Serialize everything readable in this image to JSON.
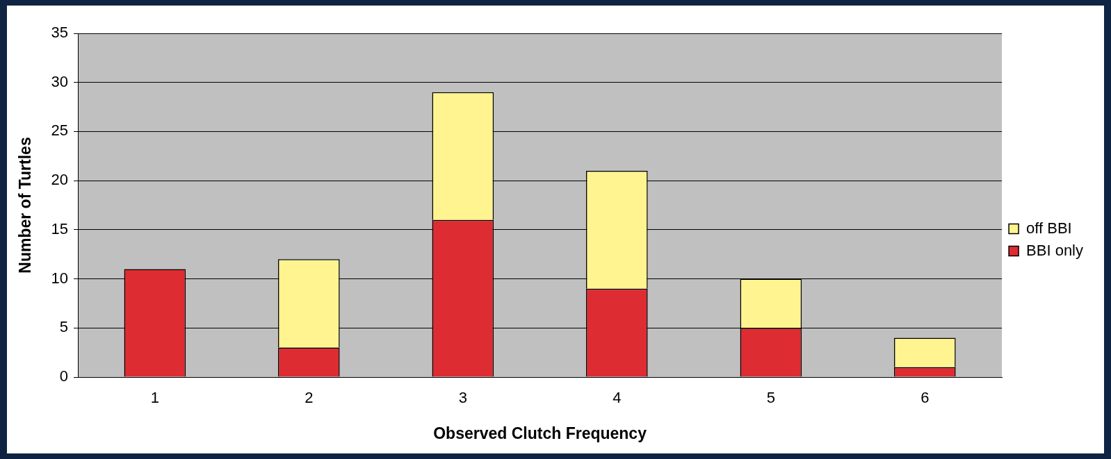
{
  "chart_data": {
    "type": "bar",
    "xlabel": "Observed Clutch Frequency",
    "ylabel": "Number of Turtles",
    "categories": [
      "1",
      "2",
      "3",
      "4",
      "5",
      "6"
    ],
    "stacked": true,
    "series": [
      {
        "name": "BBI only",
        "color": "#dd2d32",
        "values": [
          11,
          3,
          16,
          9,
          5,
          1
        ]
      },
      {
        "name": "off BBI",
        "color": "#fff48f",
        "values": [
          null,
          9,
          13,
          12,
          5,
          3
        ]
      }
    ],
    "ylim": [
      0,
      35
    ],
    "yticks": [
      0,
      5,
      10,
      15,
      20,
      25,
      30,
      35
    ],
    "grid": "y",
    "legend": "right"
  }
}
